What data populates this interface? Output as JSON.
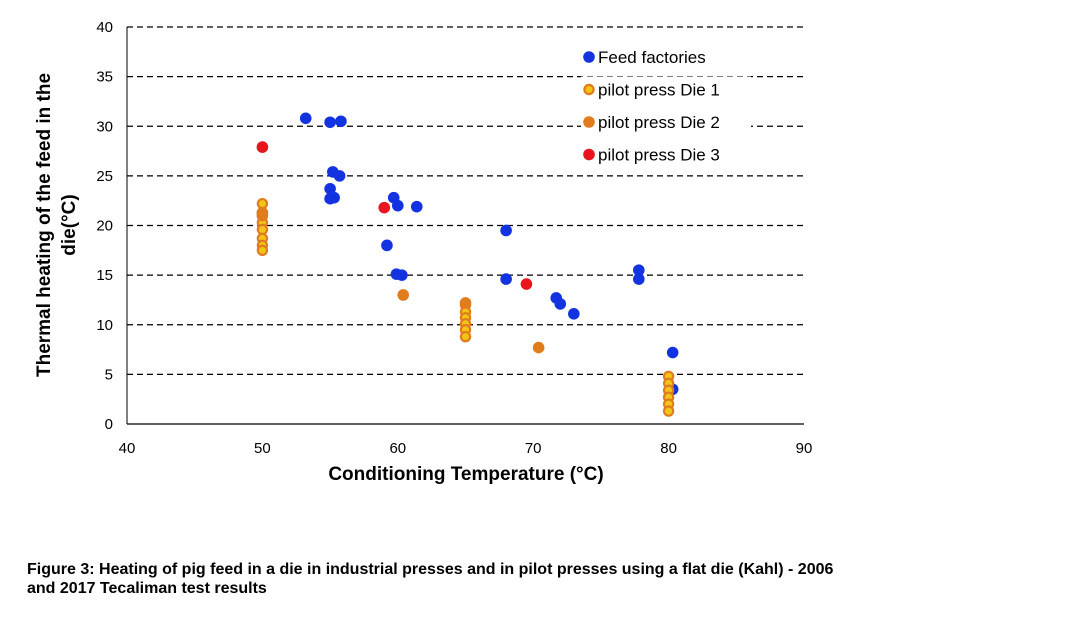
{
  "chart_data": {
    "type": "scatter",
    "xlabel": "Conditioning Temperature (°C)",
    "ylabel_lines": [
      "Thermal heating of the feed in the",
      "die(°C)"
    ],
    "xlim": [
      40,
      90
    ],
    "ylim": [
      0,
      40
    ],
    "xticks": [
      "40",
      "50",
      "60",
      "70",
      "80",
      "90"
    ],
    "yticks": [
      "0",
      "5",
      "10",
      "15",
      "20",
      "25",
      "30",
      "35",
      "40"
    ],
    "grid": "horizontal dashed",
    "legend_position": "top-right",
    "series": [
      {
        "name": "Feed factories",
        "color": "#1433e0",
        "points": [
          [
            53.2,
            30.8
          ],
          [
            55.0,
            30.4
          ],
          [
            55.8,
            30.5
          ],
          [
            55.2,
            25.4
          ],
          [
            55.7,
            25.0
          ],
          [
            55.0,
            23.7
          ],
          [
            55.0,
            22.7
          ],
          [
            55.3,
            22.8
          ],
          [
            59.7,
            22.8
          ],
          [
            60.0,
            22.0
          ],
          [
            61.4,
            21.9
          ],
          [
            59.2,
            18.0
          ],
          [
            59.9,
            15.1
          ],
          [
            60.3,
            15.0
          ],
          [
            68.0,
            19.5
          ],
          [
            68.0,
            14.6
          ],
          [
            71.7,
            12.7
          ],
          [
            72.0,
            12.1
          ],
          [
            73.0,
            11.1
          ],
          [
            77.8,
            15.5
          ],
          [
            77.8,
            14.6
          ],
          [
            80.3,
            7.2
          ],
          [
            80.3,
            3.5
          ]
        ]
      },
      {
        "name": "pilot press Die 1",
        "color": "#f2c418",
        "edge": "#e07c1c",
        "points": [
          [
            50,
            22.2
          ],
          [
            50,
            21.3
          ],
          [
            50,
            20.3
          ],
          [
            50,
            19.6
          ],
          [
            50,
            18.7
          ],
          [
            50,
            18.0
          ],
          [
            50,
            17.5
          ],
          [
            65,
            12.0
          ],
          [
            65,
            11.3
          ],
          [
            65,
            10.7
          ],
          [
            65,
            10.1
          ],
          [
            65,
            9.5
          ],
          [
            65,
            8.8
          ],
          [
            80,
            4.8
          ],
          [
            80,
            4.1
          ],
          [
            80,
            3.4
          ],
          [
            80,
            2.7
          ],
          [
            80,
            2.0
          ],
          [
            80,
            1.3
          ]
        ]
      },
      {
        "name": "pilot press Die 2",
        "color": "#e07c1c",
        "points": [
          [
            50,
            21.3
          ],
          [
            50,
            21.0
          ],
          [
            60.4,
            13.0
          ],
          [
            65,
            12.2
          ],
          [
            70.4,
            7.7
          ]
        ]
      },
      {
        "name": "pilot press Die 3",
        "color": "#e8141e",
        "points": [
          [
            50,
            27.9
          ],
          [
            59.0,
            21.8
          ],
          [
            69.5,
            14.1
          ]
        ]
      }
    ]
  },
  "caption_lines": [
    "Figure 3: Heating of pig feed in a die in industrial presses and in pilot presses using a flat die (Kahl) - 2006",
    "and 2017 Tecaliman test results"
  ]
}
